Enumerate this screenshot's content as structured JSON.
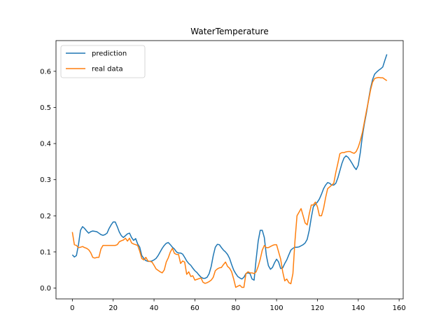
{
  "chart_data": {
    "type": "line",
    "title": "WaterTemperature",
    "xlabel": "",
    "ylabel": "",
    "xlim": [
      -8,
      162
    ],
    "ylim": [
      -0.03,
      0.685
    ],
    "xticks": [
      0,
      20,
      40,
      60,
      80,
      100,
      120,
      140,
      160
    ],
    "yticks": [
      0.0,
      0.1,
      0.2,
      0.3,
      0.4,
      0.5,
      0.6
    ],
    "grid": false,
    "legend_position": "upper-left",
    "series": [
      {
        "name": "prediction",
        "color": "#1f77b4",
        "points": [
          [
            0,
            0.092
          ],
          [
            1,
            0.086
          ],
          [
            2,
            0.09
          ],
          [
            3,
            0.12
          ],
          [
            4,
            0.16
          ],
          [
            5,
            0.17
          ],
          [
            6,
            0.165
          ],
          [
            7,
            0.158
          ],
          [
            8,
            0.152
          ],
          [
            9,
            0.156
          ],
          [
            10,
            0.158
          ],
          [
            11,
            0.157
          ],
          [
            12,
            0.156
          ],
          [
            13,
            0.152
          ],
          [
            14,
            0.148
          ],
          [
            15,
            0.146
          ],
          [
            16,
            0.148
          ],
          [
            17,
            0.152
          ],
          [
            18,
            0.165
          ],
          [
            19,
            0.175
          ],
          [
            20,
            0.183
          ],
          [
            21,
            0.183
          ],
          [
            22,
            0.17
          ],
          [
            23,
            0.155
          ],
          [
            24,
            0.145
          ],
          [
            25,
            0.14
          ],
          [
            26,
            0.145
          ],
          [
            27,
            0.15
          ],
          [
            28,
            0.152
          ],
          [
            29,
            0.14
          ],
          [
            30,
            0.132
          ],
          [
            31,
            0.137
          ],
          [
            32,
            0.122
          ],
          [
            33,
            0.113
          ],
          [
            34,
            0.09
          ],
          [
            35,
            0.082
          ],
          [
            36,
            0.076
          ],
          [
            37,
            0.074
          ],
          [
            38,
            0.074
          ],
          [
            39,
            0.075
          ],
          [
            40,
            0.078
          ],
          [
            41,
            0.082
          ],
          [
            42,
            0.09
          ],
          [
            43,
            0.1
          ],
          [
            44,
            0.11
          ],
          [
            45,
            0.118
          ],
          [
            46,
            0.124
          ],
          [
            47,
            0.126
          ],
          [
            48,
            0.12
          ],
          [
            49,
            0.113
          ],
          [
            50,
            0.108
          ],
          [
            51,
            0.1
          ],
          [
            52,
            0.097
          ],
          [
            53,
            0.097
          ],
          [
            54,
            0.094
          ],
          [
            55,
            0.085
          ],
          [
            56,
            0.075
          ],
          [
            57,
            0.068
          ],
          [
            58,
            0.063
          ],
          [
            59,
            0.055
          ],
          [
            60,
            0.048
          ],
          [
            61,
            0.043
          ],
          [
            62,
            0.036
          ],
          [
            63,
            0.03
          ],
          [
            64,
            0.027
          ],
          [
            65,
            0.027
          ],
          [
            66,
            0.03
          ],
          [
            67,
            0.04
          ],
          [
            68,
            0.06
          ],
          [
            69,
            0.09
          ],
          [
            70,
            0.113
          ],
          [
            71,
            0.121
          ],
          [
            72,
            0.12
          ],
          [
            73,
            0.112
          ],
          [
            74,
            0.105
          ],
          [
            75,
            0.1
          ],
          [
            76,
            0.093
          ],
          [
            77,
            0.082
          ],
          [
            78,
            0.065
          ],
          [
            79,
            0.05
          ],
          [
            80,
            0.04
          ],
          [
            81,
            0.032
          ],
          [
            82,
            0.028
          ],
          [
            83,
            0.025
          ],
          [
            84,
            0.03
          ],
          [
            85,
            0.04
          ],
          [
            86,
            0.042
          ],
          [
            87,
            0.04
          ],
          [
            88,
            0.025
          ],
          [
            89,
            0.022
          ],
          [
            90,
            0.08
          ],
          [
            91,
            0.13
          ],
          [
            92,
            0.16
          ],
          [
            93,
            0.16
          ],
          [
            94,
            0.14
          ],
          [
            95,
            0.09
          ],
          [
            96,
            0.062
          ],
          [
            97,
            0.052
          ],
          [
            98,
            0.057
          ],
          [
            99,
            0.07
          ],
          [
            100,
            0.08
          ],
          [
            101,
            0.072
          ],
          [
            102,
            0.054
          ],
          [
            103,
            0.056
          ],
          [
            104,
            0.068
          ],
          [
            105,
            0.078
          ],
          [
            106,
            0.092
          ],
          [
            107,
            0.105
          ],
          [
            108,
            0.11
          ],
          [
            109,
            0.113
          ],
          [
            110,
            0.113
          ],
          [
            111,
            0.114
          ],
          [
            112,
            0.117
          ],
          [
            113,
            0.12
          ],
          [
            114,
            0.125
          ],
          [
            115,
            0.135
          ],
          [
            116,
            0.16
          ],
          [
            117,
            0.195
          ],
          [
            118,
            0.225
          ],
          [
            119,
            0.232
          ],
          [
            120,
            0.238
          ],
          [
            121,
            0.247
          ],
          [
            122,
            0.26
          ],
          [
            123,
            0.275
          ],
          [
            124,
            0.285
          ],
          [
            125,
            0.292
          ],
          [
            126,
            0.29
          ],
          [
            127,
            0.285
          ],
          [
            128,
            0.285
          ],
          [
            129,
            0.29
          ],
          [
            130,
            0.305
          ],
          [
            131,
            0.325
          ],
          [
            132,
            0.345
          ],
          [
            133,
            0.36
          ],
          [
            134,
            0.366
          ],
          [
            135,
            0.362
          ],
          [
            136,
            0.354
          ],
          [
            137,
            0.345
          ],
          [
            138,
            0.335
          ],
          [
            139,
            0.328
          ],
          [
            140,
            0.34
          ],
          [
            141,
            0.375
          ],
          [
            142,
            0.42
          ],
          [
            143,
            0.455
          ],
          [
            144,
            0.485
          ],
          [
            145,
            0.52
          ],
          [
            146,
            0.553
          ],
          [
            147,
            0.577
          ],
          [
            148,
            0.592
          ],
          [
            149,
            0.598
          ],
          [
            150,
            0.603
          ],
          [
            151,
            0.607
          ],
          [
            152,
            0.612
          ],
          [
            153,
            0.63
          ],
          [
            154,
            0.647
          ]
        ]
      },
      {
        "name": "real data",
        "color": "#ff7f0e",
        "points": [
          [
            0,
            0.155
          ],
          [
            1,
            0.12
          ],
          [
            2,
            0.118
          ],
          [
            3,
            0.112
          ],
          [
            4,
            0.113
          ],
          [
            5,
            0.115
          ],
          [
            6,
            0.112
          ],
          [
            7,
            0.11
          ],
          [
            8,
            0.106
          ],
          [
            9,
            0.098
          ],
          [
            10,
            0.085
          ],
          [
            11,
            0.083
          ],
          [
            12,
            0.085
          ],
          [
            13,
            0.085
          ],
          [
            14,
            0.108
          ],
          [
            15,
            0.118
          ],
          [
            16,
            0.118
          ],
          [
            17,
            0.118
          ],
          [
            18,
            0.118
          ],
          [
            19,
            0.118
          ],
          [
            20,
            0.118
          ],
          [
            21,
            0.118
          ],
          [
            22,
            0.12
          ],
          [
            23,
            0.128
          ],
          [
            24,
            0.131
          ],
          [
            25,
            0.133
          ],
          [
            26,
            0.138
          ],
          [
            27,
            0.13
          ],
          [
            28,
            0.138
          ],
          [
            29,
            0.125
          ],
          [
            30,
            0.122
          ],
          [
            31,
            0.12
          ],
          [
            32,
            0.118
          ],
          [
            33,
            0.102
          ],
          [
            34,
            0.082
          ],
          [
            35,
            0.078
          ],
          [
            36,
            0.085
          ],
          [
            37,
            0.075
          ],
          [
            38,
            0.074
          ],
          [
            39,
            0.072
          ],
          [
            40,
            0.063
          ],
          [
            41,
            0.053
          ],
          [
            42,
            0.049
          ],
          [
            43,
            0.045
          ],
          [
            44,
            0.042
          ],
          [
            45,
            0.05
          ],
          [
            46,
            0.072
          ],
          [
            47,
            0.084
          ],
          [
            48,
            0.1
          ],
          [
            49,
            0.11
          ],
          [
            50,
            0.096
          ],
          [
            51,
            0.093
          ],
          [
            52,
            0.093
          ],
          [
            53,
            0.068
          ],
          [
            54,
            0.075
          ],
          [
            55,
            0.072
          ],
          [
            56,
            0.038
          ],
          [
            57,
            0.045
          ],
          [
            58,
            0.032
          ],
          [
            59,
            0.034
          ],
          [
            60,
            0.022
          ],
          [
            61,
            0.024
          ],
          [
            62,
            0.026
          ],
          [
            63,
            0.028
          ],
          [
            64,
            0.016
          ],
          [
            65,
            0.013
          ],
          [
            66,
            0.015
          ],
          [
            67,
            0.018
          ],
          [
            68,
            0.022
          ],
          [
            69,
            0.03
          ],
          [
            70,
            0.048
          ],
          [
            71,
            0.053
          ],
          [
            72,
            0.056
          ],
          [
            73,
            0.057
          ],
          [
            74,
            0.065
          ],
          [
            75,
            0.072
          ],
          [
            76,
            0.06
          ],
          [
            77,
            0.055
          ],
          [
            78,
            0.045
          ],
          [
            79,
            0.025
          ],
          [
            80,
            0.002
          ],
          [
            81,
            0.005
          ],
          [
            82,
            0.008
          ],
          [
            83,
            0.002
          ],
          [
            84,
            0.002
          ],
          [
            85,
            0.04
          ],
          [
            86,
            0.045
          ],
          [
            87,
            0.042
          ],
          [
            88,
            0.042
          ],
          [
            89,
            0.04
          ],
          [
            90,
            0.045
          ],
          [
            91,
            0.06
          ],
          [
            92,
            0.08
          ],
          [
            93,
            0.105
          ],
          [
            94,
            0.118
          ],
          [
            95,
            0.112
          ],
          [
            96,
            0.112
          ],
          [
            97,
            0.115
          ],
          [
            98,
            0.118
          ],
          [
            99,
            0.12
          ],
          [
            100,
            0.12
          ],
          [
            101,
            0.1
          ],
          [
            102,
            0.08
          ],
          [
            103,
            0.045
          ],
          [
            104,
            0.02
          ],
          [
            105,
            0.025
          ],
          [
            106,
            0.015
          ],
          [
            107,
            0.012
          ],
          [
            108,
            0.04
          ],
          [
            109,
            0.13
          ],
          [
            110,
            0.2
          ],
          [
            111,
            0.21
          ],
          [
            112,
            0.22
          ],
          [
            113,
            0.2
          ],
          [
            114,
            0.18
          ],
          [
            115,
            0.175
          ],
          [
            116,
            0.205
          ],
          [
            117,
            0.23
          ],
          [
            118,
            0.23
          ],
          [
            119,
            0.238
          ],
          [
            120,
            0.225
          ],
          [
            121,
            0.2
          ],
          [
            122,
            0.2
          ],
          [
            123,
            0.22
          ],
          [
            124,
            0.25
          ],
          [
            125,
            0.275
          ],
          [
            126,
            0.28
          ],
          [
            127,
            0.285
          ],
          [
            128,
            0.29
          ],
          [
            129,
            0.32
          ],
          [
            130,
            0.345
          ],
          [
            131,
            0.372
          ],
          [
            132,
            0.375
          ],
          [
            133,
            0.375
          ],
          [
            134,
            0.377
          ],
          [
            135,
            0.378
          ],
          [
            136,
            0.378
          ],
          [
            137,
            0.375
          ],
          [
            138,
            0.373
          ],
          [
            139,
            0.378
          ],
          [
            140,
            0.39
          ],
          [
            141,
            0.408
          ],
          [
            142,
            0.43
          ],
          [
            143,
            0.46
          ],
          [
            144,
            0.49
          ],
          [
            145,
            0.518
          ],
          [
            146,
            0.548
          ],
          [
            147,
            0.57
          ],
          [
            148,
            0.58
          ],
          [
            149,
            0.582
          ],
          [
            150,
            0.583
          ],
          [
            151,
            0.582
          ],
          [
            152,
            0.582
          ],
          [
            153,
            0.578
          ],
          [
            154,
            0.574
          ]
        ]
      }
    ]
  }
}
